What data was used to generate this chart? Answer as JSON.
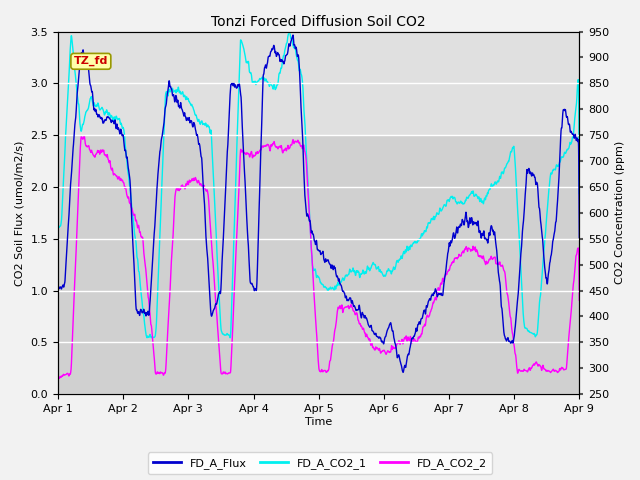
{
  "title": "Tonzi Forced Diffusion Soil CO2",
  "xlabel": "Time",
  "ylabel_left": "CO2 Soil Flux (umol/m2/s)",
  "ylabel_right": "CO2 Concentration (ppm)",
  "ylim_left": [
    0.0,
    3.5
  ],
  "ylim_right": [
    250,
    950
  ],
  "yticks_left": [
    0.0,
    0.5,
    1.0,
    1.5,
    2.0,
    2.5,
    3.0,
    3.5
  ],
  "yticks_right": [
    250,
    300,
    350,
    400,
    450,
    500,
    550,
    600,
    650,
    700,
    750,
    800,
    850,
    900,
    950
  ],
  "x_tick_labels": [
    "Apr 1",
    "Apr 2",
    "Apr 3",
    "Apr 4",
    "Apr 5",
    "Apr 6",
    "Apr 7",
    "Apr 8",
    "Apr 9"
  ],
  "color_flux": "#0000CD",
  "color_co2_1": "#00EFEF",
  "color_co2_2": "#FF00FF",
  "legend_labels": [
    "FD_A_Flux",
    "FD_A_CO2_1",
    "FD_A_CO2_2"
  ],
  "annotation_text": "TZ_fd",
  "annotation_color": "#CC0000",
  "annotation_bg": "#FFFFAA",
  "annotation_border": "#999900",
  "plot_bg_light": "#EBEBEB",
  "plot_bg_dark": "#D8D8D8",
  "grid_color": "#FFFFFF",
  "fig_bg": "#F2F2F2",
  "n_points": 3000
}
